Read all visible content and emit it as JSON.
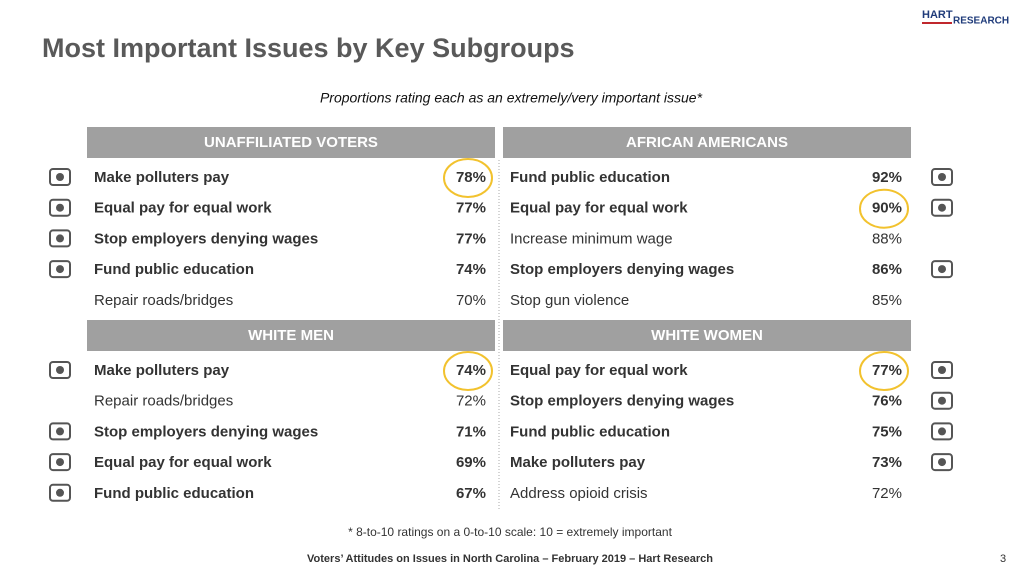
{
  "header": {
    "title": "Most Important Issues by Key Subgroups",
    "subtitle": "Proportions rating each as an extremely/very important issue*",
    "logo": [
      "HART",
      "RESEARCH"
    ]
  },
  "panels": [
    {
      "header": "UNAFFILIATED VOTERS",
      "rows": [
        {
          "label": "Make polluters pay",
          "value": "78%",
          "bold": true,
          "circled": true
        },
        {
          "label": "Equal pay for equal work",
          "value": "77%",
          "bold": true,
          "circled": false
        },
        {
          "label": "Stop employers denying wages",
          "value": "77%",
          "bold": true,
          "circled": false
        },
        {
          "label": "Fund public education",
          "value": "74%",
          "bold": true,
          "circled": false
        },
        {
          "label": "Repair roads/bridges",
          "value": "70%",
          "bold": false,
          "circled": false
        }
      ]
    },
    {
      "header": "AFRICAN AMERICANS",
      "rows": [
        {
          "label": "Fund public education",
          "value": "92%",
          "bold": true,
          "circled": false
        },
        {
          "label": "Equal pay for equal work",
          "value": "90%",
          "bold": true,
          "circled": true
        },
        {
          "label": "Increase minimum wage",
          "value": "88%",
          "bold": false,
          "circled": false
        },
        {
          "label": "Stop employers denying wages",
          "value": "86%",
          "bold": true,
          "circled": false
        },
        {
          "label": "Stop gun violence",
          "value": "85%",
          "bold": false,
          "circled": false
        }
      ]
    },
    {
      "header": "WHITE MEN",
      "rows": [
        {
          "label": "Make polluters pay",
          "value": "74%",
          "bold": true,
          "circled": true
        },
        {
          "label": "Repair roads/bridges",
          "value": "72%",
          "bold": false,
          "circled": false
        },
        {
          "label": "Stop employers denying wages",
          "value": "71%",
          "bold": true,
          "circled": false
        },
        {
          "label": "Equal pay for equal work",
          "value": "69%",
          "bold": true,
          "circled": false
        },
        {
          "label": "Fund public education",
          "value": "67%",
          "bold": true,
          "circled": false
        }
      ]
    },
    {
      "header": "WHITE WOMEN",
      "rows": [
        {
          "label": "Equal pay for equal work",
          "value": "77%",
          "bold": true,
          "circled": true
        },
        {
          "label": "Stop employers denying wages",
          "value": "76%",
          "bold": true,
          "circled": false
        },
        {
          "label": "Fund public education",
          "value": "75%",
          "bold": true,
          "circled": false
        },
        {
          "label": "Make polluters pay",
          "value": "73%",
          "bold": true,
          "circled": false
        },
        {
          "label": "Address opioid crisis",
          "value": "72%",
          "bold": false,
          "circled": false
        }
      ]
    }
  ],
  "footnote": "* 8-to-10 ratings on a 0-to-10 scale: 10 = extremely important",
  "footer": {
    "text": "Voters’ Attitudes on Issues in North Carolina – February 2019 – Hart Research",
    "page": "3"
  }
}
